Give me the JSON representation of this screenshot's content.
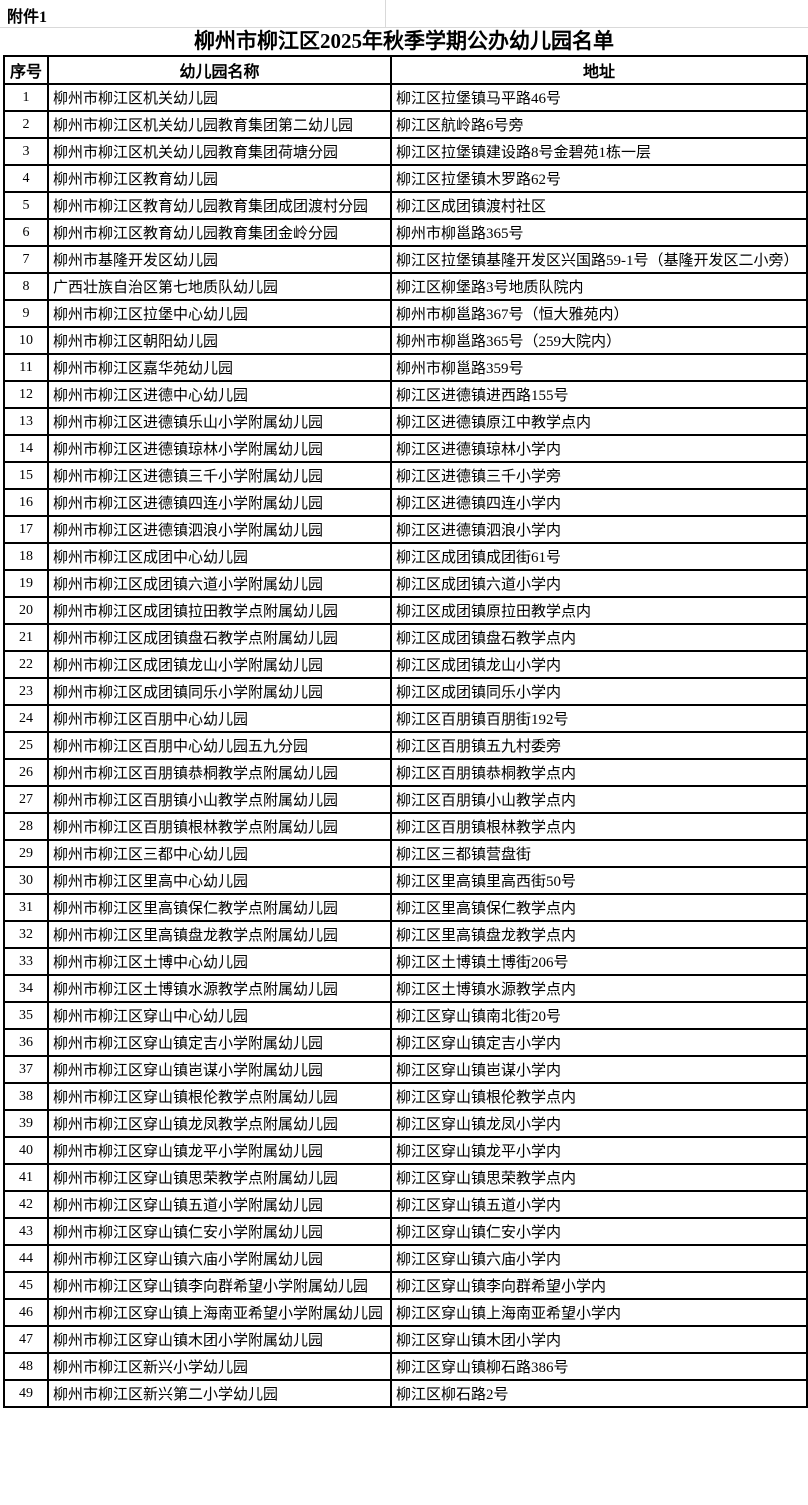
{
  "page": {
    "attachment_label": "附件1",
    "title": "柳州市柳江区2025年秋季学期公办幼儿园名单"
  },
  "table": {
    "columns": [
      "序号",
      "幼儿园名称",
      "地址"
    ],
    "rows": [
      {
        "no": "1",
        "name": "柳州市柳江区机关幼儿园",
        "address": "柳江区拉堡镇马平路46号"
      },
      {
        "no": "2",
        "name": "柳州市柳江区机关幼儿园教育集团第二幼儿园",
        "address": "柳江区航岭路6号旁"
      },
      {
        "no": "3",
        "name": "柳州市柳江区机关幼儿园教育集团荷塘分园",
        "address": "柳江区拉堡镇建设路8号金碧苑1栋一层"
      },
      {
        "no": "4",
        "name": "柳州市柳江区教育幼儿园",
        "address": "柳江区拉堡镇木罗路62号"
      },
      {
        "no": "5",
        "name": "柳州市柳江区教育幼儿园教育集团成团渡村分园",
        "address": "柳江区成团镇渡村社区"
      },
      {
        "no": "6",
        "name": "柳州市柳江区教育幼儿园教育集团金岭分园",
        "address": "柳州市柳邕路365号"
      },
      {
        "no": "7",
        "name": "柳州市基隆开发区幼儿园",
        "address": "柳江区拉堡镇基隆开发区兴国路59-1号（基隆开发区二小旁）"
      },
      {
        "no": "8",
        "name": "广西壮族自治区第七地质队幼儿园",
        "address": "柳江区柳堡路3号地质队院内"
      },
      {
        "no": "9",
        "name": "柳州市柳江区拉堡中心幼儿园",
        "address": "柳州市柳邕路367号（恒大雅苑内）"
      },
      {
        "no": "10",
        "name": "柳州市柳江区朝阳幼儿园",
        "address": "柳州市柳邕路365号（259大院内）"
      },
      {
        "no": "11",
        "name": "柳州市柳江区嘉华苑幼儿园",
        "address": "柳州市柳邕路359号"
      },
      {
        "no": "12",
        "name": "柳州市柳江区进德中心幼儿园",
        "address": "柳江区进德镇进西路155号"
      },
      {
        "no": "13",
        "name": "柳州市柳江区进德镇乐山小学附属幼儿园",
        "address": "柳江区进德镇原江中教学点内"
      },
      {
        "no": "14",
        "name": "柳州市柳江区进德镇琼林小学附属幼儿园",
        "address": "柳江区进德镇琼林小学内"
      },
      {
        "no": "15",
        "name": "柳州市柳江区进德镇三千小学附属幼儿园",
        "address": "柳江区进德镇三千小学旁"
      },
      {
        "no": "16",
        "name": "柳州市柳江区进德镇四连小学附属幼儿园",
        "address": "柳江区进德镇四连小学内"
      },
      {
        "no": "17",
        "name": "柳州市柳江区进德镇泗浪小学附属幼儿园",
        "address": "柳江区进德镇泗浪小学内"
      },
      {
        "no": "18",
        "name": "柳州市柳江区成团中心幼儿园",
        "address": "柳江区成团镇成团街61号"
      },
      {
        "no": "19",
        "name": "柳州市柳江区成团镇六道小学附属幼儿园",
        "address": "柳江区成团镇六道小学内"
      },
      {
        "no": "20",
        "name": "柳州市柳江区成团镇拉田教学点附属幼儿园",
        "address": "柳江区成团镇原拉田教学点内"
      },
      {
        "no": "21",
        "name": "柳州市柳江区成团镇盘石教学点附属幼儿园",
        "address": "柳江区成团镇盘石教学点内"
      },
      {
        "no": "22",
        "name": "柳州市柳江区成团镇龙山小学附属幼儿园",
        "address": "柳江区成团镇龙山小学内"
      },
      {
        "no": "23",
        "name": "柳州市柳江区成团镇同乐小学附属幼儿园",
        "address": "柳江区成团镇同乐小学内"
      },
      {
        "no": "24",
        "name": "柳州市柳江区百朋中心幼儿园",
        "address": "柳江区百朋镇百朋街192号"
      },
      {
        "no": "25",
        "name": "柳州市柳江区百朋中心幼儿园五九分园",
        "address": "柳江区百朋镇五九村委旁"
      },
      {
        "no": "26",
        "name": "柳州市柳江区百朋镇恭桐教学点附属幼儿园",
        "address": "柳江区百朋镇恭桐教学点内"
      },
      {
        "no": "27",
        "name": "柳州市柳江区百朋镇小山教学点附属幼儿园",
        "address": "柳江区百朋镇小山教学点内"
      },
      {
        "no": "28",
        "name": "柳州市柳江区百朋镇根林教学点附属幼儿园",
        "address": "柳江区百朋镇根林教学点内"
      },
      {
        "no": "29",
        "name": "柳州市柳江区三都中心幼儿园",
        "address": "柳江区三都镇营盘街"
      },
      {
        "no": "30",
        "name": "柳州市柳江区里高中心幼儿园",
        "address": "柳江区里高镇里高西街50号"
      },
      {
        "no": "31",
        "name": "柳州市柳江区里高镇保仁教学点附属幼儿园",
        "address": "柳江区里高镇保仁教学点内"
      },
      {
        "no": "32",
        "name": "柳州市柳江区里高镇盘龙教学点附属幼儿园",
        "address": "柳江区里高镇盘龙教学点内"
      },
      {
        "no": "33",
        "name": "柳州市柳江区土博中心幼儿园",
        "address": "柳江区土博镇土博街206号"
      },
      {
        "no": "34",
        "name": "柳州市柳江区土博镇水源教学点附属幼儿园",
        "address": "柳江区土博镇水源教学点内"
      },
      {
        "no": "35",
        "name": "柳州市柳江区穿山中心幼儿园",
        "address": "柳江区穿山镇南北街20号"
      },
      {
        "no": "36",
        "name": "柳州市柳江区穿山镇定吉小学附属幼儿园",
        "address": "柳江区穿山镇定吉小学内"
      },
      {
        "no": "37",
        "name": "柳州市柳江区穿山镇岜谋小学附属幼儿园",
        "address": "柳江区穿山镇岜谋小学内"
      },
      {
        "no": "38",
        "name": "柳州市柳江区穿山镇根伦教学点附属幼儿园",
        "address": "柳江区穿山镇根伦教学点内"
      },
      {
        "no": "39",
        "name": "柳州市柳江区穿山镇龙凤教学点附属幼儿园",
        "address": "柳江区穿山镇龙凤小学内"
      },
      {
        "no": "40",
        "name": "柳州市柳江区穿山镇龙平小学附属幼儿园",
        "address": "柳江区穿山镇龙平小学内"
      },
      {
        "no": "41",
        "name": "柳州市柳江区穿山镇思荣教学点附属幼儿园",
        "address": "柳江区穿山镇思荣教学点内"
      },
      {
        "no": "42",
        "name": "柳州市柳江区穿山镇五道小学附属幼儿园",
        "address": "柳江区穿山镇五道小学内"
      },
      {
        "no": "43",
        "name": "柳州市柳江区穿山镇仁安小学附属幼儿园",
        "address": "柳江区穿山镇仁安小学内"
      },
      {
        "no": "44",
        "name": "柳州市柳江区穿山镇六庙小学附属幼儿园",
        "address": "柳江区穿山镇六庙小学内"
      },
      {
        "no": "45",
        "name": "柳州市柳江区穿山镇李向群希望小学附属幼儿园",
        "address": "柳江区穿山镇李向群希望小学内"
      },
      {
        "no": "46",
        "name": "柳州市柳江区穿山镇上海南亚希望小学附属幼儿园",
        "address": "柳江区穿山镇上海南亚希望小学内"
      },
      {
        "no": "47",
        "name": "柳州市柳江区穿山镇木团小学附属幼儿园",
        "address": "柳江区穿山镇木团小学内"
      },
      {
        "no": "48",
        "name": "柳州市柳江区新兴小学幼儿园",
        "address": "柳江区穿山镇柳石路386号"
      },
      {
        "no": "49",
        "name": "柳州市柳江区新兴第二小学幼儿园",
        "address": "柳江区柳石路2号"
      }
    ]
  }
}
